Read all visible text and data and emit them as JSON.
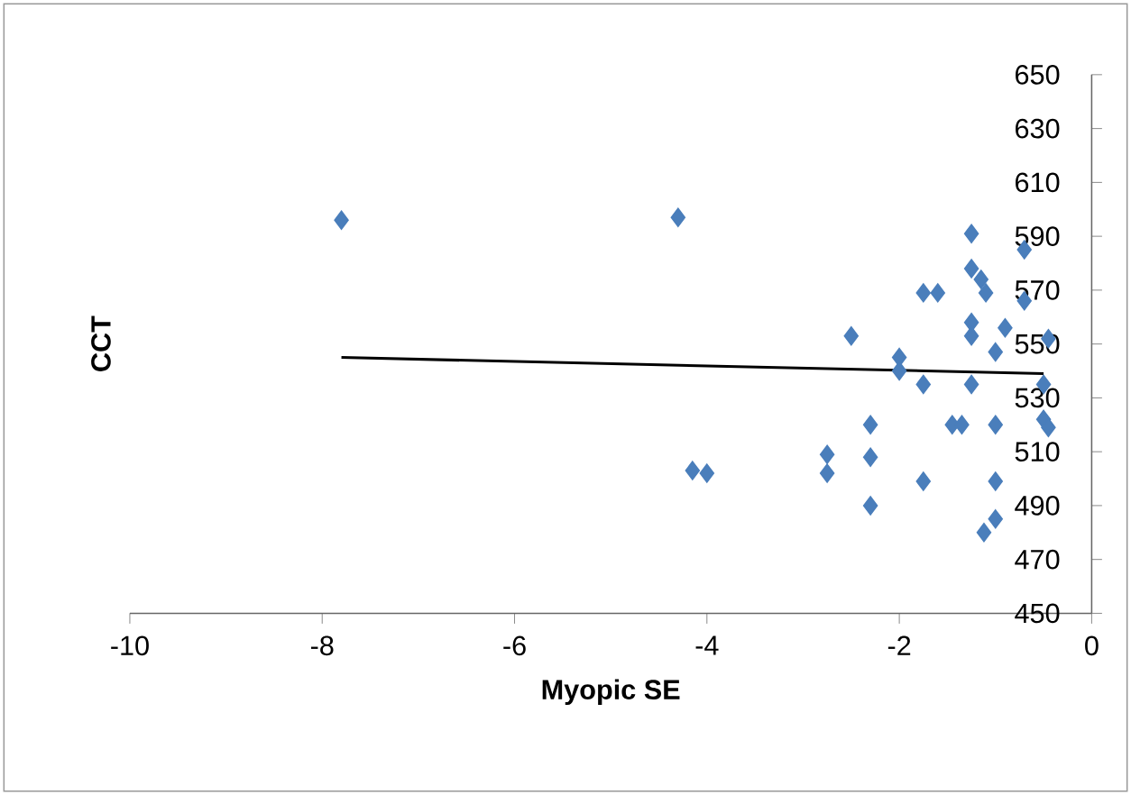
{
  "chart_data": {
    "type": "scatter",
    "xlabel": "Myopic SE",
    "ylabel": "CCT",
    "xlim": [
      -10,
      0
    ],
    "xticks": [
      -10,
      -8,
      -6,
      -4,
      -2,
      0
    ],
    "ylim": [
      450,
      650
    ],
    "yticks": [
      450,
      470,
      490,
      510,
      530,
      550,
      570,
      590,
      610,
      630,
      650
    ],
    "marker": "diamond",
    "grid": false,
    "series": [
      {
        "color": "#4a7ebb",
        "x": [
          -7.8,
          -4.3,
          -4.15,
          -4.0,
          -2.5,
          -2.0,
          -2.0,
          -1.75,
          -1.75,
          -1.6,
          -1.25,
          -1.25,
          -1.15,
          -1.1,
          -1.25,
          -1.25,
          -1.0,
          -0.9,
          -0.7,
          -0.7,
          -0.45,
          -1.25,
          -0.5,
          -2.3,
          -1.45,
          -1.35,
          -1.0,
          -0.5,
          -0.45,
          -2.75,
          -2.75,
          -2.3,
          -1.75,
          -1.0,
          -2.3,
          -1.0,
          -1.12
        ],
        "values": [
          596,
          597,
          503,
          502,
          553,
          545,
          540,
          535,
          569,
          569,
          591,
          578,
          574,
          569,
          558,
          553,
          547,
          556,
          585,
          566,
          552,
          535,
          535,
          520,
          520,
          520,
          520,
          522,
          519,
          509,
          502,
          508,
          499,
          499,
          490,
          485,
          480
        ]
      },
      {
        "type": "line",
        "color": "#000000",
        "marker": "none",
        "x": [
          -7.8,
          -0.5
        ],
        "values": [
          545,
          539
        ]
      }
    ]
  }
}
